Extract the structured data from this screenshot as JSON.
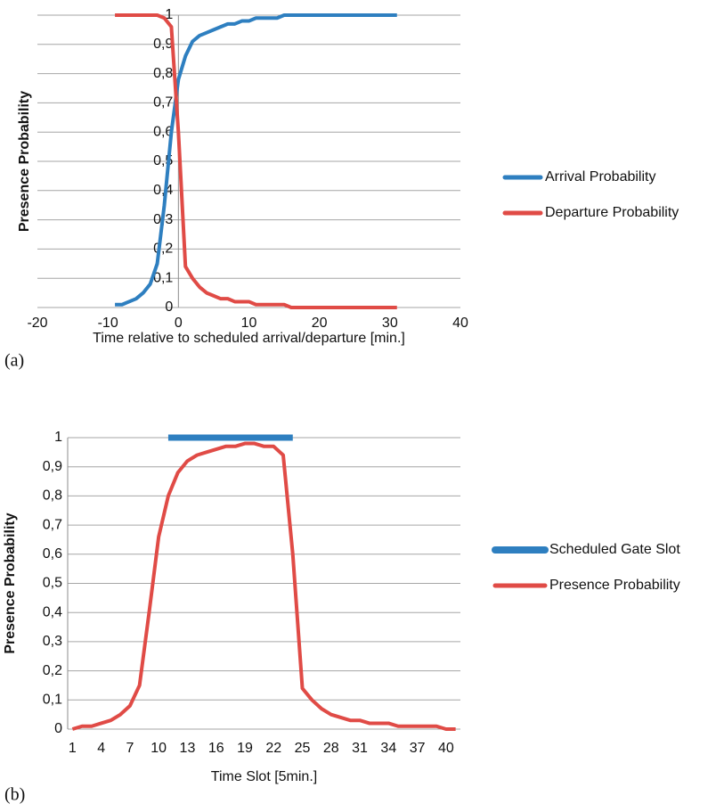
{
  "chart_data": [
    {
      "type": "line",
      "caption": "(a)",
      "y_label": "Presence Probability",
      "x_label": "Time relative to scheduled arrival/departure [min.]",
      "x": [
        -9,
        -8,
        -7,
        -6,
        -5,
        -4,
        -3,
        -2,
        -1,
        0,
        1,
        2,
        3,
        4,
        5,
        6,
        7,
        8,
        9,
        10,
        11,
        12,
        13,
        14,
        15,
        16,
        17,
        18,
        19,
        20,
        21,
        22,
        23,
        24,
        25,
        26,
        27,
        28,
        29,
        30,
        31
      ],
      "series": [
        {
          "name": "Arrival Probability",
          "color": "#2e7fc0",
          "values": [
            0.01,
            0.01,
            0.02,
            0.03,
            0.05,
            0.08,
            0.15,
            0.35,
            0.6,
            0.78,
            0.86,
            0.91,
            0.93,
            0.94,
            0.95,
            0.96,
            0.97,
            0.97,
            0.98,
            0.98,
            0.99,
            0.99,
            0.99,
            0.99,
            1,
            1,
            1,
            1,
            1,
            1,
            1,
            1,
            1,
            1,
            1,
            1,
            1,
            1,
            1,
            1,
            1
          ]
        },
        {
          "name": "Departure Probability",
          "color": "#e04b46",
          "values": [
            1,
            1,
            1,
            1,
            1,
            1,
            1,
            0.99,
            0.96,
            0.6,
            0.14,
            0.1,
            0.07,
            0.05,
            0.04,
            0.03,
            0.03,
            0.02,
            0.02,
            0.02,
            0.01,
            0.01,
            0.01,
            0.01,
            0.01,
            0,
            0,
            0,
            0,
            0,
            0,
            0,
            0,
            0,
            0,
            0,
            0,
            0,
            0,
            0,
            0
          ]
        }
      ],
      "xlim": [
        -20,
        40
      ],
      "xticks": [
        -20,
        -10,
        0,
        10,
        20,
        30,
        40
      ],
      "ylim": [
        0,
        1
      ],
      "yticks": [
        0,
        {
          "value": 0.1,
          "label": "0,1"
        },
        {
          "value": 0.2,
          "label": "0,2"
        },
        {
          "value": 0.3,
          "label": "0,3"
        },
        {
          "value": 0.4,
          "label": "0,4"
        },
        {
          "value": 0.5,
          "label": "0,5"
        },
        {
          "value": 0.6,
          "label": "0,6"
        },
        {
          "value": 0.7,
          "label": "0,7"
        },
        {
          "value": 0.8,
          "label": "0,8"
        },
        {
          "value": 0.9,
          "label": "0,9"
        },
        1
      ],
      "grid": true,
      "legend": "right"
    },
    {
      "type": "line",
      "caption": "(b)",
      "y_label": "Presence Probability",
      "x_label": "Time Slot [5min.]",
      "categories": [
        1,
        null,
        null,
        4,
        null,
        null,
        7,
        null,
        null,
        10,
        null,
        null,
        13,
        null,
        null,
        16,
        null,
        null,
        19,
        null,
        null,
        22,
        null,
        null,
        25,
        null,
        null,
        28,
        null,
        null,
        31,
        null,
        null,
        34,
        null,
        null,
        37,
        null,
        null,
        40,
        null
      ],
      "series": [
        {
          "name": "Scheduled Gate Slot",
          "color": "#2e7fc0",
          "values": [
            null,
            null,
            null,
            null,
            null,
            null,
            null,
            null,
            null,
            null,
            1,
            1,
            1,
            1,
            1,
            1,
            1,
            1,
            1,
            1,
            1,
            1,
            1,
            1,
            null,
            null,
            null,
            null,
            null,
            null,
            null,
            null,
            null,
            null,
            null,
            null,
            null,
            null,
            null,
            null,
            null
          ]
        },
        {
          "name": "Presence Probability",
          "color": "#e04b46",
          "values": [
            0,
            0.01,
            0.01,
            0.02,
            0.03,
            0.05,
            0.08,
            0.15,
            0.4,
            0.66,
            0.8,
            0.88,
            0.92,
            0.94,
            0.95,
            0.96,
            0.97,
            0.97,
            0.98,
            0.98,
            0.97,
            0.97,
            0.94,
            0.6,
            0.14,
            0.1,
            0.07,
            0.05,
            0.04,
            0.03,
            0.03,
            0.02,
            0.02,
            0.02,
            0.01,
            0.01,
            0.01,
            0.01,
            0.01,
            0,
            0
          ]
        }
      ],
      "ylim": [
        0,
        1
      ],
      "yticks": [
        0,
        {
          "value": 0.1,
          "label": "0,1"
        },
        {
          "value": 0.2,
          "label": "0,2"
        },
        {
          "value": 0.3,
          "label": "0,3"
        },
        {
          "value": 0.4,
          "label": "0,4"
        },
        {
          "value": 0.5,
          "label": "0,5"
        },
        {
          "value": 0.6,
          "label": "0,6"
        },
        {
          "value": 0.7,
          "label": "0,7"
        },
        {
          "value": 0.8,
          "label": "0,8"
        },
        {
          "value": 0.9,
          "label": "0,9"
        },
        1
      ],
      "grid": true,
      "legend": "right"
    }
  ]
}
